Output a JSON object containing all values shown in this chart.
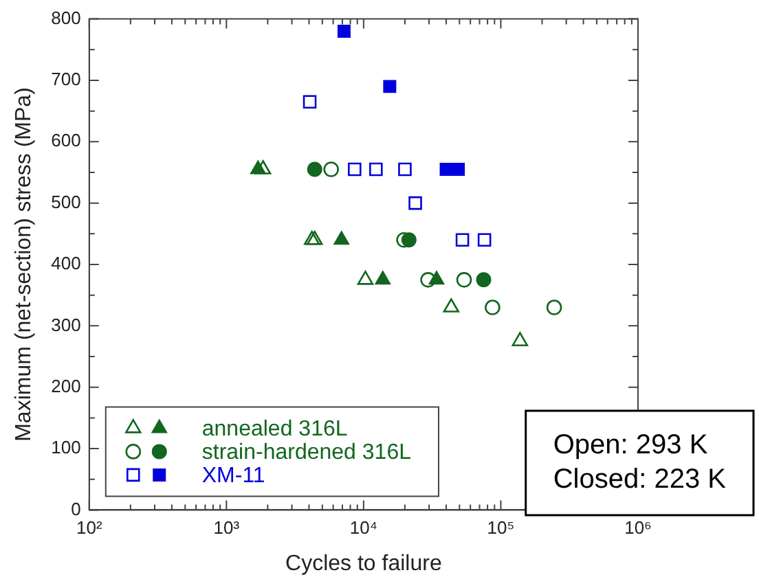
{
  "chart_data": {
    "type": "scatter",
    "xlabel": "Cycles to failure",
    "ylabel": "Maximum (net-section) stress (MPa)",
    "log": "x",
    "xlim": [
      100,
      1000000
    ],
    "xticks": [
      {
        "value": 100,
        "label": "10²"
      },
      {
        "value": 1000,
        "label": "10³"
      },
      {
        "value": 10000,
        "label": "10⁴"
      },
      {
        "value": 100000,
        "label": "10⁵"
      },
      {
        "value": 1000000,
        "label": "10⁶"
      }
    ],
    "ylim": [
      0,
      800
    ],
    "yticks": [
      0,
      100,
      200,
      300,
      400,
      500,
      600,
      700,
      800
    ],
    "grid": false,
    "legend": "bottom left",
    "series": [
      {
        "color": "#13661f",
        "marker": "triangle",
        "x": [
          1850,
          4200,
          4400,
          10300,
          43500,
          138000
        ],
        "values": [
          555,
          440,
          440,
          375,
          330,
          275
        ]
      },
      {
        "name": "annealed 316L",
        "color": "#13661f",
        "marker": "triangle",
        "x": [
          1700,
          6900,
          13800,
          34000
        ],
        "values": [
          555,
          440,
          375,
          375
        ]
      },
      {
        "color": "#13661f",
        "marker": "circle",
        "x": [
          5800,
          19700,
          29500,
          54000,
          87000,
          245000
        ],
        "values": [
          555,
          440,
          375,
          375,
          330,
          330
        ]
      },
      {
        "name": "strain-hardened 316L",
        "color": "#13661f",
        "marker": "circle",
        "x": [
          4400,
          21400,
          75000
        ],
        "values": [
          555,
          440,
          375
        ]
      },
      {
        "color": "#0000dd",
        "marker": "square",
        "x": [
          4050,
          8600,
          12300,
          20000,
          23800,
          52500,
          76000
        ],
        "values": [
          665,
          555,
          555,
          555,
          500,
          440,
          440
        ]
      },
      {
        "name": "XM-11",
        "color": "#0000dd",
        "marker": "square",
        "x": [
          7200,
          15500,
          40000,
          49000
        ],
        "values": [
          780,
          690,
          555,
          555
        ]
      }
    ],
    "annotations": [
      "Open: 293 K",
      "Closed: 223 K"
    ]
  }
}
